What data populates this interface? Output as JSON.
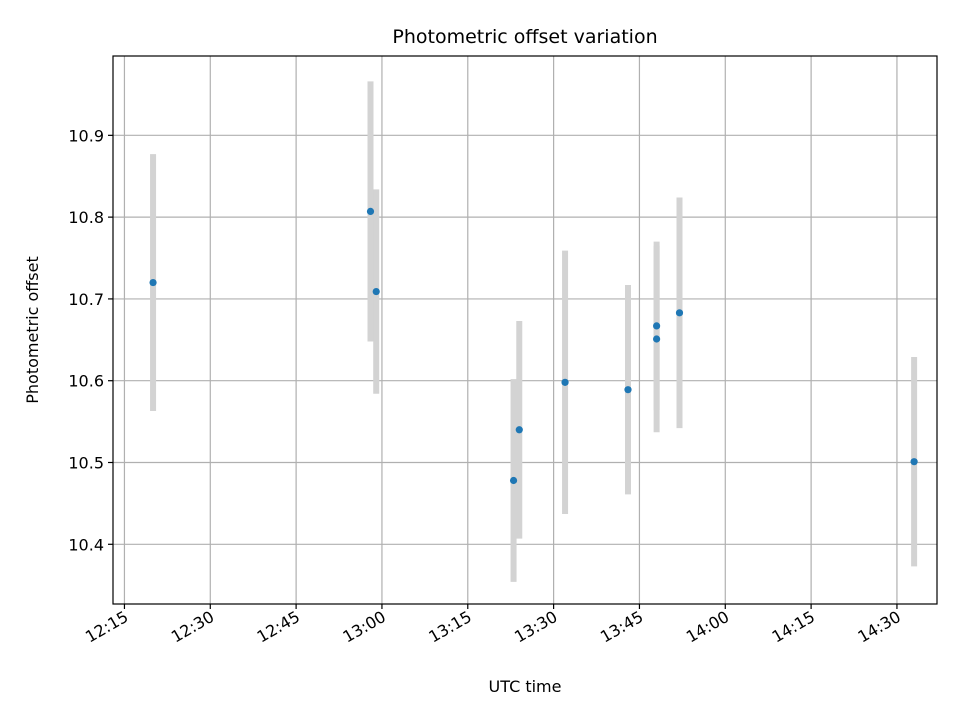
{
  "chart_data": {
    "type": "scatter",
    "title": "Photometric offset variation",
    "xlabel": "UTC time",
    "ylabel": "Photometric offset",
    "x_ticks": [
      "12:15",
      "12:30",
      "12:45",
      "13:00",
      "13:15",
      "13:30",
      "13:45",
      "14:00",
      "14:15",
      "14:30"
    ],
    "y_ticks": [
      "10.4",
      "10.5",
      "10.6",
      "10.7",
      "10.8",
      "10.9"
    ],
    "xlim": [
      "12:13",
      "14:37"
    ],
    "ylim": [
      10.327,
      10.997
    ],
    "grid": true,
    "marker_color": "#1f77b4",
    "errorbar_color": "#d3d3d3",
    "points": [
      {
        "x": "12:20",
        "y": 10.72,
        "err": 0.157
      },
      {
        "x": "12:58",
        "y": 10.807,
        "err": 0.159
      },
      {
        "x": "12:59",
        "y": 10.709,
        "err": 0.125
      },
      {
        "x": "13:23",
        "y": 10.478,
        "err": 0.124
      },
      {
        "x": "13:24",
        "y": 10.54,
        "err": 0.133
      },
      {
        "x": "13:32",
        "y": 10.598,
        "err": 0.161
      },
      {
        "x": "13:43",
        "y": 10.589,
        "err": 0.128
      },
      {
        "x": "13:48",
        "y": 10.667,
        "err": 0.103
      },
      {
        "x": "13:48",
        "y": 10.651,
        "err": 0.114
      },
      {
        "x": "13:52",
        "y": 10.683,
        "err": 0.141
      },
      {
        "x": "14:33",
        "y": 10.501,
        "err": 0.128
      }
    ]
  }
}
